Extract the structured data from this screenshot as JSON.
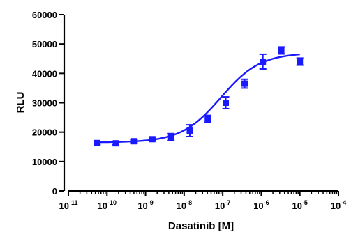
{
  "chart_data": {
    "type": "scatter",
    "title": "",
    "xlabel": "Dasatinib [M]",
    "ylabel": "RLU",
    "x_scale": "log",
    "xlim": [
      1e-11,
      0.0001
    ],
    "ylim": [
      0,
      60000
    ],
    "x_ticks": [
      {
        "base": "10",
        "exp": "-11",
        "value": 1e-11
      },
      {
        "base": "10",
        "exp": "-10",
        "value": 1e-10
      },
      {
        "base": "10",
        "exp": "-9",
        "value": 1e-09
      },
      {
        "base": "10",
        "exp": "-8",
        "value": 1e-08
      },
      {
        "base": "10",
        "exp": "-7",
        "value": 1e-07
      },
      {
        "base": "10",
        "exp": "-6",
        "value": 1e-06
      },
      {
        "base": "10",
        "exp": "-5",
        "value": 1e-05
      },
      {
        "base": "10",
        "exp": "-4",
        "value": 0.0001
      }
    ],
    "y_ticks": [
      "0",
      "10000",
      "20000",
      "30000",
      "40000",
      "50000",
      "60000"
    ],
    "y_tick_values": [
      0,
      10000,
      20000,
      30000,
      40000,
      50000,
      60000
    ],
    "color": "#1a1aff",
    "points": [
      {
        "x": 5.6e-11,
        "y": 16300,
        "err": 500
      },
      {
        "x": 1.7e-10,
        "y": 16200,
        "err": 500
      },
      {
        "x": 5.1e-10,
        "y": 16900,
        "err": 500
      },
      {
        "x": 1.5e-09,
        "y": 17600,
        "err": 500
      },
      {
        "x": 4.6e-09,
        "y": 18300,
        "err": 1200
      },
      {
        "x": 1.4e-08,
        "y": 20500,
        "err": 2000
      },
      {
        "x": 4.1e-08,
        "y": 24500,
        "err": 1200
      },
      {
        "x": 1.2e-07,
        "y": 30000,
        "err": 2000
      },
      {
        "x": 3.7e-07,
        "y": 36500,
        "err": 1500
      },
      {
        "x": 1.1e-06,
        "y": 44000,
        "err": 2500
      },
      {
        "x": 3.3e-06,
        "y": 47800,
        "err": 1200
      },
      {
        "x": 1e-05,
        "y": 44000,
        "err": 1200
      }
    ],
    "fit": {
      "bottom": 16500,
      "top": 47000,
      "logEC50": -7.05,
      "hill": 0.85
    },
    "grid": false,
    "legend": "none"
  }
}
